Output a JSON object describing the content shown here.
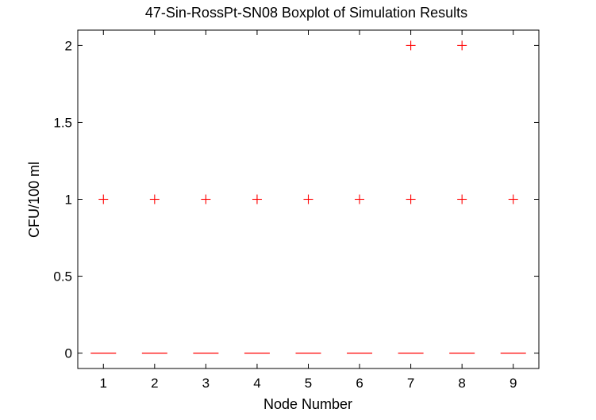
{
  "chart_data": {
    "type": "boxplot",
    "title": "47-Sin-RossPt-SN08 Boxplot of Simulation Results",
    "xlabel": "Node Number",
    "ylabel": "CFU/100 ml",
    "categories": [
      "1",
      "2",
      "3",
      "4",
      "5",
      "6",
      "7",
      "8",
      "9"
    ],
    "yticks": [
      "0",
      "0.5",
      "1",
      "1.5",
      "2"
    ],
    "ytick_values": [
      0,
      0.5,
      1,
      1.5,
      2
    ],
    "xlim": [
      0.5,
      9.5
    ],
    "ylim": [
      -0.1,
      2.1
    ],
    "grid": false,
    "medians": [
      0,
      0,
      0,
      0,
      0,
      0,
      0,
      0,
      0
    ],
    "outliers": [
      [
        1
      ],
      [
        1
      ],
      [
        1
      ],
      [
        1
      ],
      [
        1
      ],
      [
        1
      ],
      [
        1,
        2
      ],
      [
        1,
        2
      ],
      [
        1
      ]
    ],
    "colors": {
      "median": "#ff0000",
      "outlier": "#ff0000",
      "axes": "#000000",
      "background": "#ffffff"
    }
  }
}
